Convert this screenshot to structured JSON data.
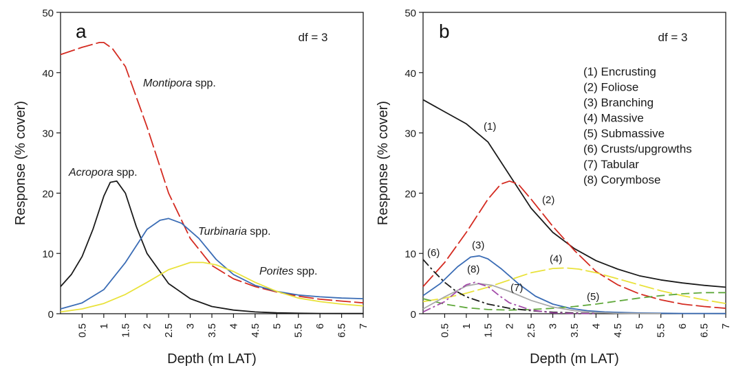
{
  "chart_data": [
    {
      "panel": "a",
      "type": "line",
      "xlabel": "Depth (m LAT)",
      "ylabel": "Response (% cover)",
      "xlim": [
        0,
        7
      ],
      "ylim": [
        0,
        50
      ],
      "xticks": [
        0.5,
        1,
        1.5,
        2,
        2.5,
        3,
        3.5,
        4,
        4.5,
        5,
        5.5,
        6,
        6.5,
        7
      ],
      "yticks": [
        0,
        10,
        20,
        30,
        40,
        50
      ],
      "annotation": "df = 3",
      "series": [
        {
          "label_italic": "Montipora",
          "label_rest": " spp.",
          "color": "#d42a20",
          "dash": "long",
          "x": [
            0,
            0.5,
            0.9,
            1.0,
            1.2,
            1.5,
            2.0,
            2.5,
            3.0,
            3.5,
            4.0,
            4.5,
            5.0,
            5.5,
            6.0,
            6.5,
            7.0
          ],
          "y": [
            43,
            44.2,
            45,
            45,
            44,
            41,
            31,
            20,
            12.5,
            8,
            5.8,
            4.5,
            3.6,
            2.9,
            2.4,
            2.1,
            1.8
          ]
        },
        {
          "label_italic": "Acropora",
          "label_rest": " spp.",
          "color": "#1a1a1a",
          "dash": "solid",
          "x": [
            0,
            0.25,
            0.5,
            0.75,
            1.0,
            1.15,
            1.3,
            1.5,
            1.75,
            2.0,
            2.5,
            3.0,
            3.5,
            4.0,
            4.5,
            5.0,
            5.5,
            6.0,
            7.0
          ],
          "y": [
            4.5,
            6.5,
            9.5,
            14,
            19.5,
            21.8,
            22,
            20,
            14.5,
            10,
            5,
            2.5,
            1.2,
            0.6,
            0.3,
            0.15,
            0.08,
            0.05,
            0.03
          ]
        },
        {
          "label_italic": "Turbinaria",
          "label_rest": " spp.",
          "color": "#3a6cb5",
          "dash": "solid",
          "x": [
            0,
            0.5,
            1.0,
            1.5,
            2.0,
            2.3,
            2.5,
            2.8,
            3.2,
            3.6,
            4.0,
            4.5,
            5.0,
            5.5,
            6.0,
            6.5,
            7.0
          ],
          "y": [
            0.8,
            1.8,
            4,
            8.5,
            14,
            15.5,
            15.8,
            15,
            12.5,
            9,
            6.5,
            4.7,
            3.7,
            3.1,
            2.8,
            2.6,
            2.5
          ]
        },
        {
          "label_italic": "Porites",
          "label_rest": " spp.",
          "color": "#e9e23a",
          "dash": "solid",
          "x": [
            0,
            0.5,
            1.0,
            1.5,
            2.0,
            2.5,
            3.0,
            3.3,
            3.6,
            4.0,
            4.5,
            5.0,
            5.5,
            6.0,
            6.5,
            7.0
          ],
          "y": [
            0.3,
            0.8,
            1.7,
            3.2,
            5.2,
            7.3,
            8.5,
            8.5,
            8.1,
            7,
            5.2,
            3.7,
            2.6,
            2,
            1.6,
            1.3
          ]
        }
      ]
    },
    {
      "panel": "b",
      "type": "line",
      "xlabel": "Depth (m LAT)",
      "ylabel": "Response (% cover)",
      "xlim": [
        0,
        7
      ],
      "ylim": [
        0,
        50
      ],
      "xticks": [
        0.5,
        1,
        1.5,
        2,
        2.5,
        3,
        3.5,
        4,
        4.5,
        5,
        5.5,
        6,
        6.5,
        7
      ],
      "yticks": [
        0,
        10,
        20,
        30,
        40,
        50
      ],
      "annotation": "df = 3",
      "legend": [
        "(1) Encrusting",
        "(2) Foliose",
        "(3) Branching",
        "(4) Massive",
        "(5) Submassive",
        "(6) Crusts/upgrowths",
        "(7) Tabular",
        "(8) Corymbose"
      ],
      "series": [
        {
          "name": "(1) Encrusting",
          "tag": "(1)",
          "color": "#1a1a1a",
          "dash": "solid",
          "x": [
            0,
            0.5,
            1.0,
            1.5,
            2.0,
            2.5,
            3.0,
            3.5,
            4.0,
            4.5,
            5.0,
            5.5,
            6.0,
            6.5,
            7.0
          ],
          "y": [
            35.5,
            33.5,
            31.5,
            28.5,
            23,
            17.5,
            13.5,
            10.8,
            8.8,
            7.4,
            6.3,
            5.6,
            5.1,
            4.7,
            4.4
          ]
        },
        {
          "name": "(2) Foliose",
          "tag": "(2)",
          "color": "#d42a20",
          "dash": "long",
          "x": [
            0,
            0.5,
            1.0,
            1.5,
            1.8,
            2.0,
            2.2,
            2.5,
            3.0,
            3.5,
            4.0,
            4.5,
            5.0,
            5.5,
            6.0,
            6.5,
            7.0
          ],
          "y": [
            4.5,
            8.5,
            13.5,
            19,
            21.5,
            22,
            21.5,
            19,
            14.5,
            10.5,
            7,
            4.8,
            3.3,
            2.3,
            1.6,
            1.2,
            0.9
          ]
        },
        {
          "name": "(3) Branching",
          "tag": "(3)",
          "color": "#3a6cb5",
          "dash": "solid",
          "x": [
            0,
            0.4,
            0.8,
            1.1,
            1.3,
            1.5,
            1.8,
            2.2,
            2.6,
            3.0,
            3.4,
            3.8,
            4.2,
            4.6,
            5.0,
            5.5,
            6.0,
            7.0
          ],
          "y": [
            3,
            5,
            7.8,
            9.4,
            9.6,
            9.1,
            7.5,
            5,
            2.9,
            1.6,
            0.9,
            0.5,
            0.3,
            0.2,
            0.12,
            0.08,
            0.05,
            0.03
          ]
        },
        {
          "name": "(4) Massive",
          "tag": "(4)",
          "color": "#e9e23a",
          "dash": "long",
          "x": [
            0,
            0.5,
            1.0,
            1.5,
            2.0,
            2.5,
            3.0,
            3.3,
            3.6,
            4.0,
            4.5,
            5.0,
            5.5,
            6.0,
            6.5,
            7.0
          ],
          "y": [
            2,
            2.6,
            3.4,
            4.4,
            5.6,
            6.8,
            7.5,
            7.6,
            7.4,
            6.8,
            5.8,
            4.8,
            3.8,
            3,
            2.3,
            1.7
          ]
        },
        {
          "name": "(5) Submassive",
          "tag": "(5)",
          "color": "#5fa83a",
          "dash": "medium",
          "x": [
            0,
            0.5,
            1.0,
            1.5,
            2.0,
            2.5,
            3.0,
            3.5,
            4.0,
            4.5,
            5.0,
            5.5,
            6.0,
            6.5,
            7.0
          ],
          "y": [
            2.5,
            1.6,
            1.0,
            0.7,
            0.6,
            0.7,
            0.9,
            1.2,
            1.6,
            2.1,
            2.6,
            3.0,
            3.3,
            3.5,
            3.5
          ]
        },
        {
          "name": "(6) Crusts/upgrowths",
          "tag": "(6)",
          "color": "#1a1a1a",
          "dash": "dashdot",
          "x": [
            0,
            0.25,
            0.5,
            0.75,
            1.0,
            1.5,
            2.0,
            2.5,
            3.0,
            3.5,
            4.0
          ],
          "y": [
            9,
            7,
            5.2,
            3.8,
            2.8,
            1.6,
            0.9,
            0.5,
            0.25,
            0.12,
            0.05
          ]
        },
        {
          "name": "(7) Tabular",
          "tag": "(7)",
          "color": "#a8a8a8",
          "dash": "solid",
          "x": [
            0,
            0.5,
            1.0,
            1.3,
            1.6,
            2.0,
            2.5,
            3.0,
            3.5,
            4.0,
            4.5,
            5.0,
            5.5
          ],
          "y": [
            0.8,
            2.8,
            4.6,
            5,
            4.7,
            3.7,
            2.2,
            1.1,
            0.5,
            0.2,
            0.08,
            0.03,
            0.01
          ]
        },
        {
          "name": "(8) Corymbose",
          "tag": "(8)",
          "color": "#a24aa8",
          "dash": "dashdot",
          "x": [
            0,
            0.5,
            0.8,
            1.0,
            1.2,
            1.5,
            1.8,
            2.0,
            2.5,
            3.0,
            3.5,
            4.0
          ],
          "y": [
            0.3,
            2,
            3.8,
            4.8,
            5.2,
            4.5,
            2.8,
            1.8,
            0.6,
            0.15,
            0.05,
            0.02
          ]
        }
      ]
    }
  ]
}
